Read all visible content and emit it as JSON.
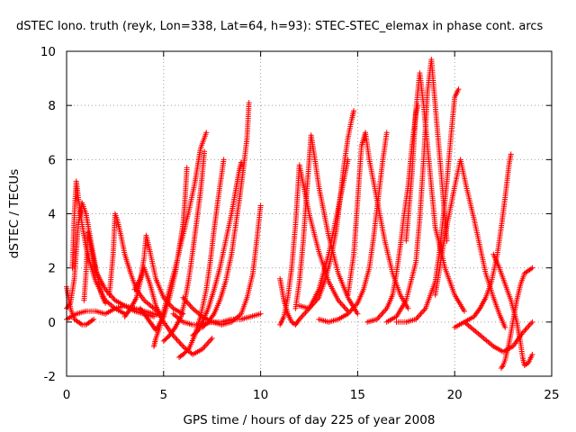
{
  "chart_data": {
    "type": "scatter",
    "title": "dSTEC Iono. truth (reyk, Lon=338, Lat=64, h=93): STEC-STEC_elemax in phase cont. arcs",
    "xlabel": "GPS time / hours of day 225 of year 2008",
    "ylabel": "dSTEC  / TECUs",
    "xlim": [
      0,
      25
    ],
    "ylim": [
      -2,
      10
    ],
    "x_ticks": [
      0,
      5,
      10,
      15,
      20,
      25
    ],
    "y_ticks": [
      -2,
      0,
      2,
      4,
      6,
      8,
      10
    ],
    "x_tick_labels": [
      "0",
      "5",
      "10",
      "15",
      "20",
      "25"
    ],
    "y_tick_labels": [
      "-2",
      "0",
      "2",
      "4",
      "6",
      "8",
      "10"
    ],
    "grid": true,
    "legend": "none",
    "marker": "plus",
    "color": "#ff0000",
    "series": [
      {
        "x": [
          0.0,
          0.2,
          0.4,
          0.6,
          0.8,
          1.0,
          1.2,
          1.4
        ],
        "y": [
          1.3,
          0.5,
          0.1,
          0.0,
          -0.1,
          -0.1,
          0.0,
          0.1
        ]
      },
      {
        "x": [
          0.0,
          0.2,
          0.4,
          0.5,
          0.6,
          0.8,
          1.0,
          1.2,
          1.5,
          1.8,
          2.0
        ],
        "y": [
          0.5,
          0.7,
          1.6,
          2.6,
          3.6,
          4.4,
          4.0,
          3.2,
          2.0,
          1.0,
          0.7
        ]
      },
      {
        "x": [
          0.3,
          0.4,
          0.5,
          0.6,
          0.8,
          1.0,
          1.2,
          1.5,
          2.0,
          2.5,
          3.0
        ],
        "y": [
          2.0,
          4.0,
          5.2,
          4.6,
          3.6,
          2.8,
          2.2,
          1.5,
          0.8,
          0.5,
          0.3
        ]
      },
      {
        "x": [
          0.9,
          1.0,
          1.1,
          1.3,
          1.5,
          2.0,
          2.5,
          3.0,
          3.5,
          4.0,
          4.5
        ],
        "y": [
          0.8,
          1.8,
          3.3,
          2.6,
          1.9,
          1.2,
          0.8,
          0.6,
          0.4,
          0.3,
          0.2
        ]
      },
      {
        "x": [
          0.0,
          0.5,
          1.0,
          1.5,
          2.0,
          2.5,
          3.0,
          3.5,
          4.0,
          4.5,
          5.0
        ],
        "y": [
          0.1,
          0.3,
          0.4,
          0.4,
          0.3,
          0.5,
          0.6,
          0.5,
          0.4,
          0.3,
          0.2
        ]
      },
      {
        "x": [
          2.2,
          2.4,
          2.5,
          2.6,
          2.8,
          3.0,
          3.3,
          3.6,
          4.0,
          4.5,
          5.0
        ],
        "y": [
          1.0,
          2.5,
          4.0,
          3.8,
          3.2,
          2.5,
          1.8,
          1.2,
          0.8,
          0.5,
          0.2
        ]
      },
      {
        "x": [
          3.0,
          3.3,
          3.6,
          3.8,
          4.0,
          4.1,
          4.3,
          4.6,
          5.0,
          5.5,
          6.0
        ],
        "y": [
          0.2,
          0.5,
          0.9,
          1.5,
          2.4,
          3.2,
          2.6,
          1.6,
          0.9,
          0.5,
          0.3
        ]
      },
      {
        "x": [
          3.5,
          3.8,
          4.0,
          4.3,
          4.6,
          5.0,
          5.5,
          6.0,
          6.5,
          7.0,
          7.5
        ],
        "y": [
          1.2,
          1.6,
          2.0,
          1.4,
          0.6,
          0.0,
          -0.5,
          -0.9,
          -1.2,
          -1.0,
          -0.6
        ]
      },
      {
        "x": [
          4.5,
          4.6,
          4.8,
          5.0,
          5.3,
          5.6,
          6.0,
          6.3,
          6.6,
          6.9,
          7.2
        ],
        "y": [
          -0.9,
          -0.6,
          -0.2,
          0.4,
          1.2,
          2.0,
          3.2,
          4.1,
          5.1,
          6.4,
          7.0
        ]
      },
      {
        "x": [
          3.8,
          4.0,
          4.3,
          4.6,
          5.0,
          5.3,
          5.6,
          5.8,
          6.0,
          6.1,
          6.2
        ],
        "y": [
          0.5,
          0.3,
          0.0,
          -0.3,
          0.2,
          0.9,
          1.8,
          2.7,
          3.6,
          4.5,
          5.7
        ]
      },
      {
        "x": [
          5.0,
          5.3,
          5.6,
          5.9,
          6.1,
          6.3,
          6.5,
          6.7,
          6.9,
          7.0,
          7.1
        ],
        "y": [
          -0.7,
          -0.5,
          -0.2,
          0.2,
          0.8,
          1.6,
          2.6,
          3.7,
          4.8,
          5.5,
          6.3
        ]
      },
      {
        "x": [
          5.8,
          6.0,
          6.3,
          6.6,
          6.9,
          7.2,
          7.4,
          7.6,
          7.8,
          8.0,
          8.1
        ],
        "y": [
          -1.3,
          -1.2,
          -1.0,
          -0.5,
          0.2,
          1.2,
          2.2,
          3.4,
          4.5,
          5.5,
          6.0
        ]
      },
      {
        "x": [
          6.5,
          6.8,
          7.0,
          7.3,
          7.6,
          7.9,
          8.2,
          8.5,
          8.7,
          8.9,
          9.0
        ],
        "y": [
          -0.5,
          -0.3,
          0.0,
          0.5,
          1.2,
          2.0,
          3.0,
          4.0,
          4.8,
          5.6,
          5.9
        ]
      },
      {
        "x": [
          7.0,
          7.3,
          7.6,
          7.9,
          8.2,
          8.5,
          8.7,
          8.9,
          9.1,
          9.3,
          9.4
        ],
        "y": [
          -0.2,
          0.0,
          0.3,
          0.8,
          1.5,
          2.5,
          3.5,
          4.5,
          5.6,
          6.8,
          8.1
        ]
      },
      {
        "x": [
          6.0,
          6.5,
          7.0,
          7.5,
          8.0,
          8.5,
          9.0,
          9.3,
          9.6,
          9.8,
          10.0
        ],
        "y": [
          0.9,
          0.5,
          0.2,
          0.0,
          -0.1,
          0.0,
          0.3,
          0.9,
          1.8,
          3.0,
          4.3
        ]
      },
      {
        "x": [
          5.5,
          6.0,
          6.5,
          7.0,
          7.5,
          8.0,
          8.5,
          9.0,
          9.5,
          10.0
        ],
        "y": [
          0.3,
          0.0,
          -0.1,
          -0.1,
          0.0,
          0.0,
          0.1,
          0.1,
          0.2,
          0.3
        ]
      },
      {
        "x": [
          11.0,
          11.2,
          11.4,
          11.6,
          11.8,
          12.0,
          12.5,
          13.0,
          13.5,
          14.0,
          14.5
        ],
        "y": [
          1.6,
          0.8,
          0.3,
          0.0,
          -0.1,
          0.1,
          0.5,
          1.2,
          2.5,
          4.2,
          6.0
        ]
      },
      {
        "x": [
          11.0,
          11.2,
          11.4,
          11.6,
          11.8,
          12.0,
          12.5,
          13.0,
          13.5,
          14.0,
          14.5
        ],
        "y": [
          -0.1,
          0.2,
          0.9,
          2.0,
          3.6,
          5.8,
          4.0,
          2.6,
          1.5,
          0.8,
          0.4
        ]
      },
      {
        "x": [
          11.8,
          12.0,
          12.2,
          12.4,
          12.6,
          12.8,
          13.0,
          13.5,
          14.0,
          14.5,
          15.0
        ],
        "y": [
          0.5,
          1.5,
          3.0,
          5.0,
          6.9,
          6.0,
          5.0,
          3.2,
          1.8,
          0.9,
          0.3
        ]
      },
      {
        "x": [
          12.0,
          12.5,
          13.0,
          13.3,
          13.6,
          13.9,
          14.1,
          14.3,
          14.5,
          14.7,
          14.8
        ],
        "y": [
          0.6,
          0.5,
          0.9,
          1.5,
          2.3,
          3.4,
          4.6,
          5.8,
          6.8,
          7.5,
          7.8
        ]
      },
      {
        "x": [
          13.0,
          13.5,
          14.0,
          14.5,
          15.0,
          15.3,
          15.6,
          15.8,
          16.0,
          16.3,
          16.5
        ],
        "y": [
          0.1,
          0.0,
          0.1,
          0.3,
          0.7,
          1.2,
          2.0,
          3.0,
          4.2,
          6.0,
          7.0
        ]
      },
      {
        "x": [
          14.5,
          14.8,
          15.0,
          15.2,
          15.4,
          15.6,
          16.0,
          16.4,
          16.8,
          17.2,
          17.6
        ],
        "y": [
          1.0,
          2.5,
          4.5,
          6.5,
          7.0,
          6.0,
          4.5,
          3.0,
          1.8,
          1.0,
          0.5
        ]
      },
      {
        "x": [
          15.5,
          16.0,
          16.5,
          16.8,
          17.0,
          17.2,
          17.4,
          17.6,
          17.8,
          18.0,
          18.1
        ],
        "y": [
          0.0,
          0.1,
          0.5,
          1.0,
          1.8,
          2.8,
          4.0,
          5.0,
          6.5,
          7.7,
          8.0
        ]
      },
      {
        "x": [
          16.5,
          17.0,
          17.5,
          18.0,
          18.2,
          18.4,
          18.6,
          18.8,
          19.0,
          19.3,
          19.6
        ],
        "y": [
          0.0,
          0.2,
          0.8,
          2.2,
          3.8,
          6.0,
          8.5,
          9.7,
          8.0,
          5.5,
          3.0
        ]
      },
      {
        "x": [
          17.5,
          17.8,
          18.0,
          18.2,
          18.4,
          18.6,
          18.8,
          19.0,
          19.5,
          20.0,
          20.5
        ],
        "y": [
          3.0,
          5.5,
          7.8,
          9.2,
          8.0,
          6.5,
          5.0,
          3.5,
          2.0,
          1.0,
          0.4
        ]
      },
      {
        "x": [
          17.0,
          17.5,
          18.0,
          18.5,
          19.0,
          19.2,
          19.4,
          19.6,
          19.8,
          20.0,
          20.2
        ],
        "y": [
          0.0,
          0.0,
          0.1,
          0.5,
          1.5,
          2.5,
          3.8,
          5.2,
          6.8,
          8.3,
          8.6
        ]
      },
      {
        "x": [
          19.0,
          19.5,
          20.0,
          20.3,
          20.6,
          21.0,
          21.3,
          21.6,
          22.0,
          22.3,
          22.6
        ],
        "y": [
          1.0,
          3.2,
          5.0,
          6.0,
          5.0,
          3.8,
          2.8,
          1.8,
          0.9,
          0.3,
          -0.2
        ]
      },
      {
        "x": [
          20.0,
          20.5,
          21.0,
          21.3,
          21.6,
          21.9,
          22.2,
          22.4,
          22.6,
          22.8,
          22.9
        ],
        "y": [
          -0.2,
          0.0,
          0.2,
          0.5,
          0.9,
          1.5,
          2.5,
          3.5,
          4.6,
          5.8,
          6.2
        ]
      },
      {
        "x": [
          22.4,
          22.5,
          22.6,
          22.8,
          23.0,
          23.2,
          23.4,
          23.6,
          23.8,
          24.0
        ],
        "y": [
          -1.7,
          -1.6,
          -1.4,
          -0.8,
          0.0,
          0.8,
          1.4,
          1.8,
          1.9,
          2.0
        ]
      },
      {
        "x": [
          22.0,
          22.3,
          22.6,
          22.9,
          23.2,
          23.4,
          23.5,
          23.6,
          23.8,
          24.0
        ],
        "y": [
          2.5,
          2.0,
          1.4,
          0.8,
          0.0,
          -0.8,
          -1.3,
          -1.6,
          -1.5,
          -1.2
        ]
      },
      {
        "x": [
          20.5,
          21.0,
          21.5,
          22.0,
          22.5,
          23.0,
          23.5,
          24.0
        ],
        "y": [
          0.0,
          -0.3,
          -0.6,
          -0.9,
          -1.1,
          -0.9,
          -0.4,
          0.0
        ]
      }
    ]
  }
}
